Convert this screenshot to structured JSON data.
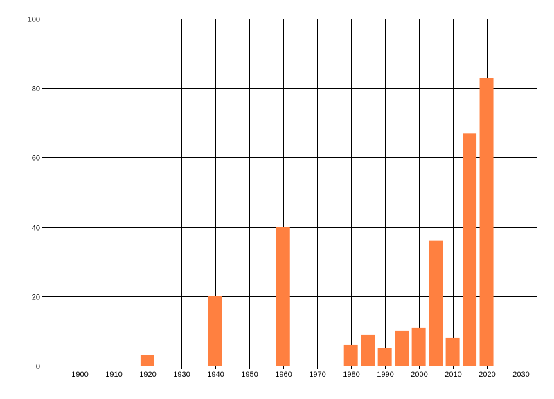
{
  "chart_data": {
    "type": "bar",
    "title": "",
    "xlabel": "",
    "ylabel": "",
    "xlim": [
      1890,
      2035
    ],
    "ylim": [
      0,
      100
    ],
    "grid": true,
    "x_ticks": [
      "1900",
      "1910",
      "1920",
      "1930",
      "1940",
      "1950",
      "1960",
      "1970",
      "1980",
      "1990",
      "2000",
      "2010",
      "2020",
      "2030"
    ],
    "y_ticks": [
      "0",
      "20",
      "40",
      "60",
      "80",
      "100"
    ],
    "x": [
      1920,
      1940,
      1960,
      1980,
      1985,
      1990,
      1995,
      2000,
      2005,
      2010,
      2015,
      2020
    ],
    "values": [
      3,
      20,
      40,
      6,
      9,
      5,
      10,
      11,
      36,
      8,
      67,
      83
    ],
    "bar_color": "#FF8040",
    "grid_color": "#000000"
  }
}
